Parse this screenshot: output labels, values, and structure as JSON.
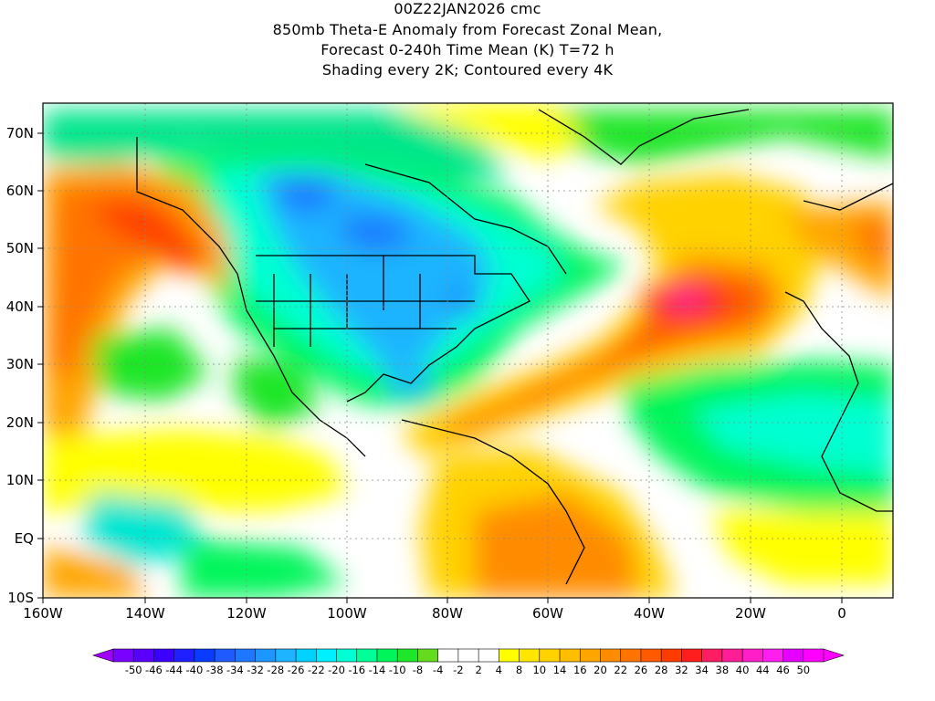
{
  "header": {
    "line1": "00Z22JAN2026 cmc",
    "line2": "850mb Theta-E Anomaly from Forecast Zonal Mean,",
    "line3": "Forecast 0-240h Time Mean (K) T=72 h",
    "line4": "Shading every 2K; Contoured every 4K"
  },
  "axes": {
    "lat_labels": [
      "70N",
      "60N",
      "50N",
      "40N",
      "30N",
      "20N",
      "10N",
      "EQ",
      "10S"
    ],
    "lon_labels": [
      "160W",
      "140W",
      "120W",
      "100W",
      "80W",
      "60W",
      "40W",
      "20W",
      "0"
    ]
  },
  "colorbar": {
    "labels": [
      "-50",
      "-46",
      "-44",
      "-40",
      "-38",
      "-34",
      "-32",
      "-28",
      "-26",
      "-22",
      "-20",
      "-16",
      "-14",
      "-10",
      "-8",
      "-4",
      "-2",
      "2",
      "4",
      "8",
      "10",
      "14",
      "16",
      "20",
      "22",
      "26",
      "28",
      "32",
      "34",
      "38",
      "40",
      "44",
      "46",
      "50"
    ],
    "colors": [
      "#7a00ff",
      "#5a00ff",
      "#3c00ff",
      "#1f1fff",
      "#0a3cff",
      "#1e5aff",
      "#1e78ff",
      "#1e96ff",
      "#1eb4ff",
      "#00d2ff",
      "#00f0ff",
      "#00ffd2",
      "#00ff96",
      "#00f55a",
      "#1ee628",
      "#64dc1e",
      "#ffffff",
      "#ffffff",
      "#ffffff",
      "#ffff00",
      "#ffe600",
      "#ffd200",
      "#ffbe00",
      "#ffa500",
      "#ff8c00",
      "#ff7300",
      "#ff5a00",
      "#ff3c00",
      "#ff1e1e",
      "#ff1e64",
      "#ff1e96",
      "#ff1ec8",
      "#ff1ef0",
      "#e600ff",
      "#ff00ff"
    ]
  }
}
